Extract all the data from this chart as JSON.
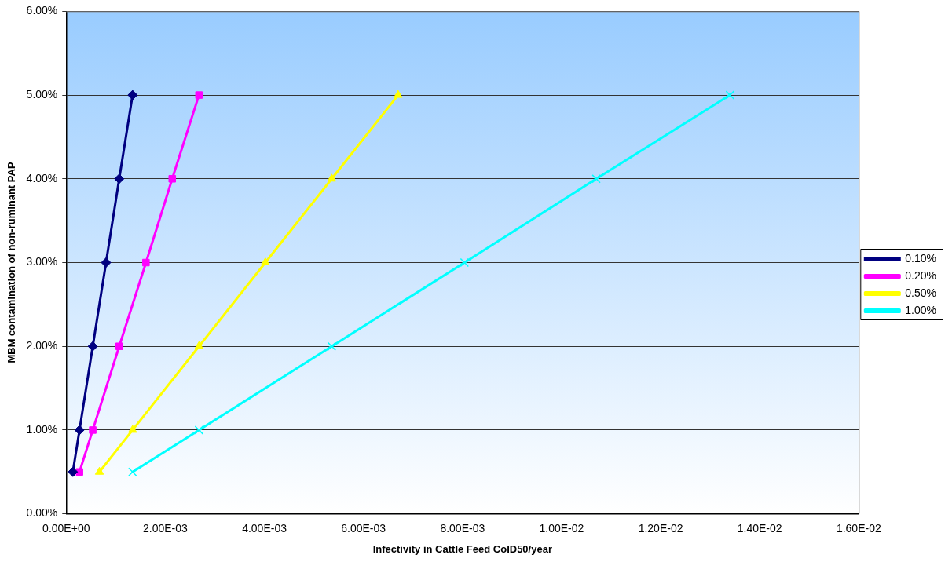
{
  "chart_data": {
    "type": "line",
    "xlabel": "Infectivity in Cattle Feed CoID50/year",
    "ylabel": "MBM contamination of non-ruminant PAP",
    "xlim": [
      0,
      0.016
    ],
    "xticks": [
      {
        "value": 0,
        "label": "0.00E+00"
      },
      {
        "value": 0.002,
        "label": "2.00E-03"
      },
      {
        "value": 0.004,
        "label": "4.00E-03"
      },
      {
        "value": 0.006,
        "label": "6.00E-03"
      },
      {
        "value": 0.008,
        "label": "8.00E-03"
      },
      {
        "value": 0.01,
        "label": "1.00E-02"
      },
      {
        "value": 0.012,
        "label": "1.20E-02"
      },
      {
        "value": 0.014,
        "label": "1.40E-02"
      },
      {
        "value": 0.016,
        "label": "1.60E-02"
      }
    ],
    "ylim": [
      0,
      0.06
    ],
    "yticks": [
      {
        "value": 0,
        "label": "0.00%"
      },
      {
        "value": 0.01,
        "label": "1.00%"
      },
      {
        "value": 0.02,
        "label": "2.00%"
      },
      {
        "value": 0.03,
        "label": "3.00%"
      },
      {
        "value": 0.04,
        "label": "4.00%"
      },
      {
        "value": 0.05,
        "label": "5.00%"
      },
      {
        "value": 0.06,
        "label": "6.00%"
      }
    ],
    "grid": "y",
    "legend": "right",
    "line_style": "solid",
    "series": [
      {
        "name": "0.10%",
        "color": "#000080",
        "marker": "diamond",
        "x": [
          0.000134,
          0.000268,
          0.000536,
          0.000804,
          0.00107,
          0.00134
        ],
        "values": [
          0.005,
          0.01,
          0.02,
          0.03,
          0.04,
          0.05
        ]
      },
      {
        "name": "0.20%",
        "color": "#ff00ff",
        "marker": "square",
        "x": [
          0.000268,
          0.000536,
          0.00107,
          0.00161,
          0.00214,
          0.00268
        ],
        "values": [
          0.005,
          0.01,
          0.02,
          0.03,
          0.04,
          0.05
        ]
      },
      {
        "name": "0.50%",
        "color": "#ffff00",
        "marker": "triangle",
        "x": [
          0.00067,
          0.00134,
          0.00268,
          0.00402,
          0.00536,
          0.0067
        ],
        "values": [
          0.005,
          0.01,
          0.02,
          0.03,
          0.04,
          0.05
        ]
      },
      {
        "name": "1.00%",
        "color": "#00ffff",
        "marker": "cross",
        "x": [
          0.00134,
          0.00268,
          0.00536,
          0.00804,
          0.0107,
          0.0134
        ],
        "values": [
          0.005,
          0.01,
          0.02,
          0.03,
          0.04,
          0.05
        ]
      }
    ]
  }
}
